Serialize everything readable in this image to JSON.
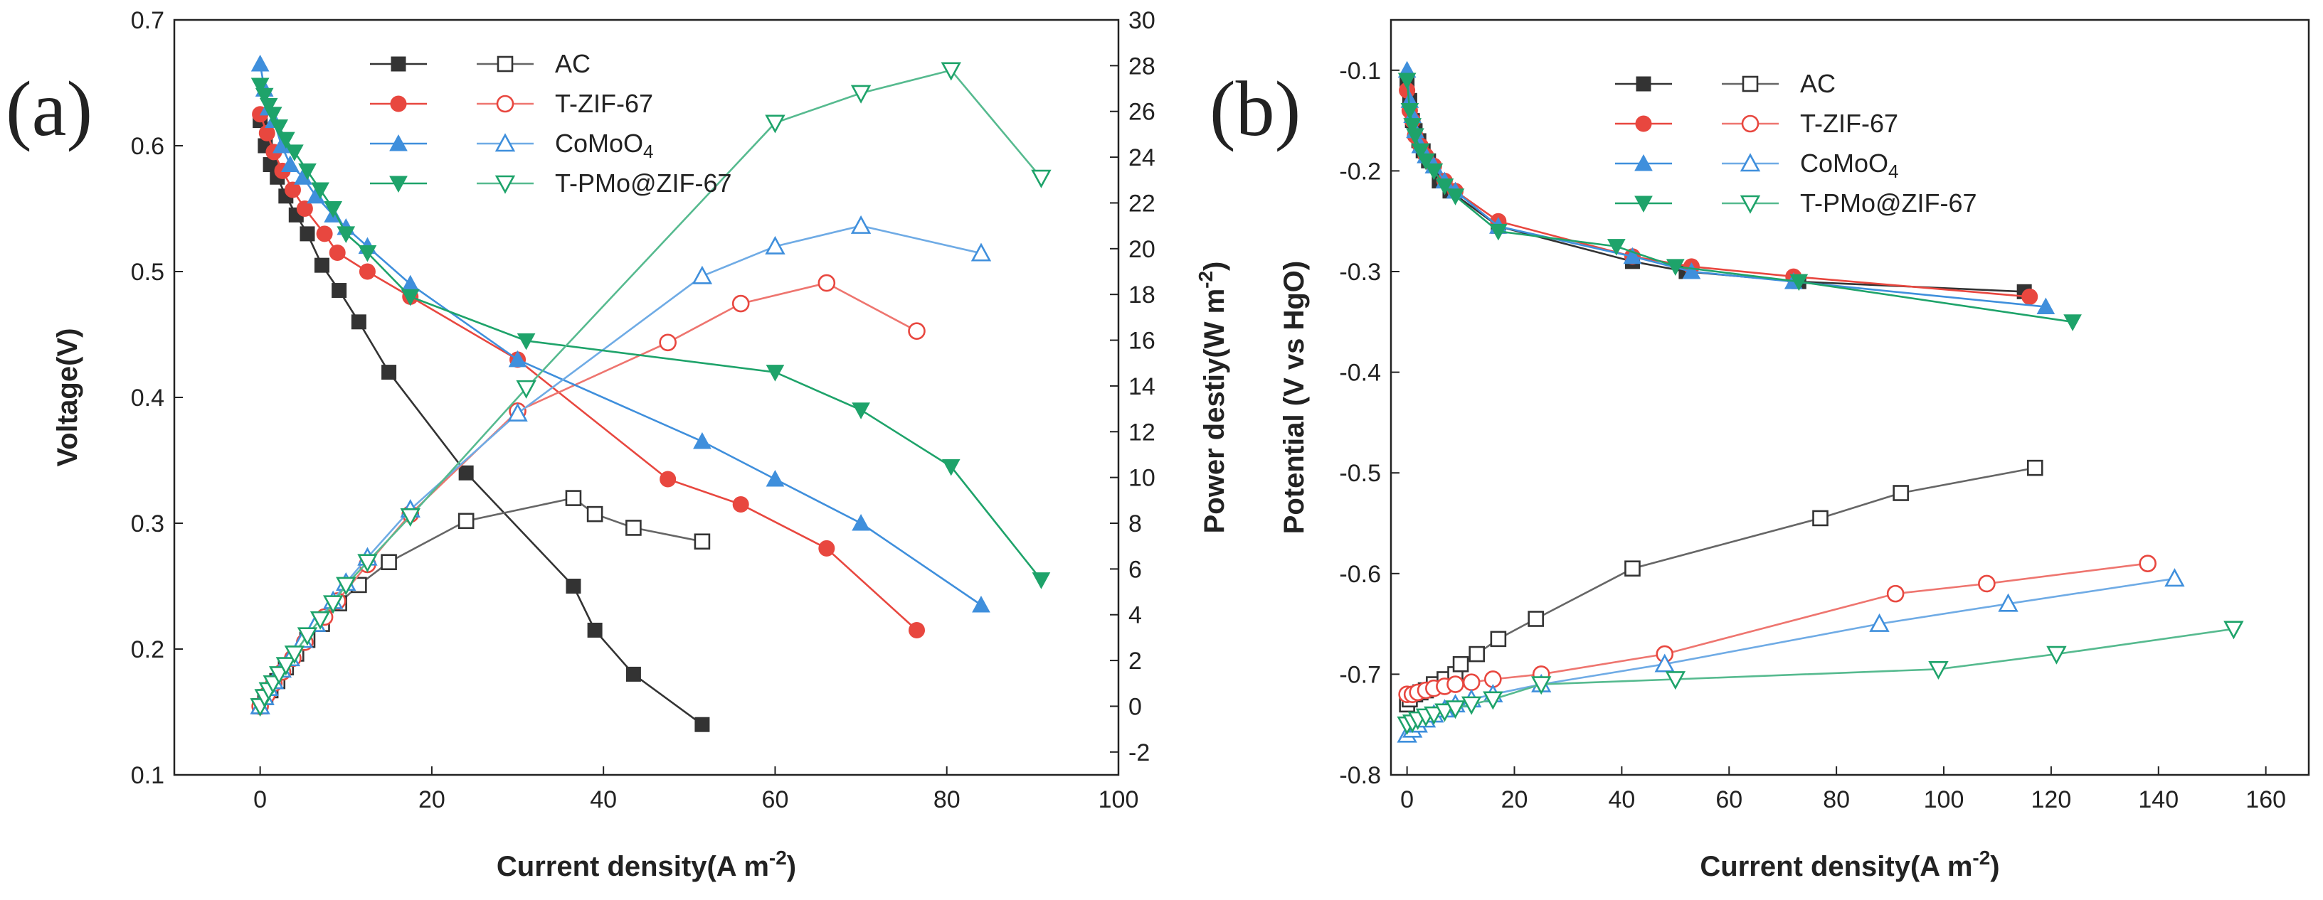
{
  "figure": {
    "panels": [
      "(a)",
      "(b)"
    ]
  },
  "chart_data": [
    {
      "panel": "(a)",
      "type": "line",
      "title": "",
      "xlabel": "Current density(A m⁻²)",
      "ylabel": "Voltage(V)",
      "y2label": "Power destiy(W m⁻²)",
      "xlim": [
        -10,
        100
      ],
      "ylim": [
        0.1,
        0.7
      ],
      "y2lim": [
        -3,
        30
      ],
      "xticks": [
        0,
        20,
        40,
        60,
        80,
        100
      ],
      "yticks": [
        0.1,
        0.2,
        0.3,
        0.4,
        0.5,
        0.6,
        0.7
      ],
      "y2ticks": [
        -2,
        0,
        2,
        4,
        6,
        8,
        10,
        12,
        14,
        16,
        18,
        20,
        22,
        24,
        26,
        28,
        30
      ],
      "xtick_labels": [
        "0",
        "20",
        "40",
        "60",
        "80",
        "100"
      ],
      "ytick_labels": [
        "0.1",
        "0.2",
        "0.3",
        "0.4",
        "0.5",
        "0.6",
        "0.7"
      ],
      "y2tick_labels": [
        "-2",
        "0",
        "2",
        "4",
        "6",
        "8",
        "10",
        "12",
        "14",
        "16",
        "18",
        "20",
        "22",
        "24",
        "26",
        "28",
        "30"
      ],
      "legend_placement": "top-center",
      "series": [
        {
          "name": "AC",
          "label": "AC",
          "marker": "square",
          "color": "#333333",
          "voltage": {
            "x": [
              0,
              0.6,
              1.2,
              2,
              3,
              4.2,
              5.5,
              7.2,
              9.2,
              11.5,
              15,
              24,
              36.5,
              39,
              43.5,
              51.5
            ],
            "y": [
              0.62,
              0.6,
              0.585,
              0.575,
              0.56,
              0.545,
              0.53,
              0.505,
              0.485,
              0.46,
              0.42,
              0.34,
              0.25,
              0.215,
              0.18,
              0.14
            ]
          },
          "power": {
            "x": [
              0,
              0.6,
              1.2,
              2,
              3,
              4.2,
              5.5,
              7.2,
              9.2,
              11.5,
              15,
              24,
              36.5,
              39,
              43.5,
              51.5
            ],
            "y": [
              0,
              0.4,
              0.7,
              1.1,
              1.7,
              2.3,
              2.9,
              3.6,
              4.5,
              5.3,
              6.3,
              8.1,
              9.1,
              8.4,
              7.8,
              7.2
            ]
          }
        },
        {
          "name": "T-ZIF-67",
          "label": "T-ZIF-67",
          "marker": "circle",
          "color": "#e8473f",
          "voltage": {
            "x": [
              0,
              0.8,
              1.6,
              2.6,
              3.8,
              5.2,
              7.5,
              9,
              12.5,
              17.5,
              30,
              47.5,
              56,
              66,
              76.5
            ],
            "y": [
              0.625,
              0.61,
              0.595,
              0.58,
              0.565,
              0.55,
              0.53,
              0.515,
              0.5,
              0.48,
              0.43,
              0.335,
              0.315,
              0.28,
              0.215
            ]
          },
          "power": {
            "x": [
              0,
              0.8,
              1.6,
              2.6,
              3.8,
              5.2,
              7.5,
              9,
              12.5,
              17.5,
              30,
              47.5,
              56,
              66,
              76.5
            ],
            "y": [
              0,
              0.5,
              1,
              1.5,
              2.1,
              2.8,
              3.9,
              4.6,
              6.2,
              8.4,
              12.9,
              15.9,
              17.6,
              18.5,
              16.4
            ]
          }
        },
        {
          "name": "CoMoO₄",
          "label": "CoMoO",
          "label_sub": "4",
          "marker": "triangle-up",
          "color": "#3f8fdc",
          "voltage": {
            "x": [
              0,
              0.5,
              1,
              1.6,
              2.5,
              3.5,
              5,
              6.5,
              8.5,
              10,
              12.5,
              17.5,
              30,
              51.5,
              60,
              70,
              84
            ],
            "y": [
              0.665,
              0.645,
              0.63,
              0.62,
              0.6,
              0.585,
              0.575,
              0.56,
              0.545,
              0.535,
              0.52,
              0.49,
              0.43,
              0.365,
              0.335,
              0.3,
              0.235
            ]
          },
          "power": {
            "x": [
              0,
              0.5,
              1,
              1.6,
              2.5,
              3.5,
              5,
              6.5,
              8.5,
              10,
              12.5,
              17.5,
              30,
              51.5,
              60,
              70,
              84
            ],
            "y": [
              0,
              0.4,
              0.8,
              1.1,
              1.6,
              2.1,
              2.9,
              3.6,
              4.6,
              5.4,
              6.5,
              8.6,
              12.8,
              18.8,
              20.1,
              21,
              19.8
            ]
          }
        },
        {
          "name": "T-PMo@ZIF-67",
          "label": "T-PMo@ZIF-67",
          "marker": "triangle-down",
          "color": "#1ea36a",
          "voltage": {
            "x": [
              0,
              0.5,
              1,
              1.5,
              2.2,
              3,
              4,
              5.5,
              7,
              8.5,
              10,
              12.5,
              17.5,
              31,
              60,
              70,
              80.5,
              91
            ],
            "y": [
              0.648,
              0.64,
              0.632,
              0.625,
              0.615,
              0.605,
              0.595,
              0.58,
              0.565,
              0.55,
              0.53,
              0.515,
              0.48,
              0.445,
              0.42,
              0.39,
              0.345,
              0.255
            ]
          },
          "power": {
            "x": [
              0,
              0.5,
              1,
              1.5,
              2.2,
              3,
              4,
              5.5,
              7,
              8.5,
              10,
              12.5,
              17.5,
              31,
              60,
              70,
              80.5,
              91
            ],
            "y": [
              0,
              0.4,
              0.7,
              1,
              1.4,
              1.8,
              2.3,
              3.1,
              3.8,
              4.5,
              5.3,
              6.3,
              8.3,
              13.9,
              25.5,
              26.8,
              27.8,
              23.1
            ]
          }
        }
      ]
    },
    {
      "panel": "(b)",
      "type": "line",
      "title": "",
      "xlabel": "Current density(A m⁻²)",
      "ylabel": "Potential (V vs HgO)",
      "xlim": [
        -3,
        168
      ],
      "ylim": [
        -0.8,
        -0.05
      ],
      "xticks": [
        0,
        20,
        40,
        60,
        80,
        100,
        120,
        140,
        160
      ],
      "yticks": [
        -0.8,
        -0.7,
        -0.6,
        -0.5,
        -0.4,
        -0.3,
        -0.2,
        -0.1
      ],
      "xtick_labels": [
        "0",
        "20",
        "40",
        "60",
        "80",
        "100",
        "120",
        "140",
        "160"
      ],
      "ytick_labels": [
        "-0.8",
        "-0.7",
        "-0.6",
        "-0.5",
        "-0.4",
        "-0.3",
        "-0.2",
        "-0.1"
      ],
      "legend_placement": "top-center",
      "series": [
        {
          "name": "AC",
          "label": "AC",
          "marker": "square",
          "color": "#333333",
          "anode": {
            "x": [
              0,
              0.5,
              1,
              1.5,
              2.2,
              3,
              4,
              6,
              8,
              17,
              42,
              52,
              73,
              115
            ],
            "y": [
              -0.11,
              -0.13,
              -0.15,
              -0.16,
              -0.17,
              -0.18,
              -0.19,
              -0.21,
              -0.22,
              -0.255,
              -0.29,
              -0.3,
              -0.31,
              -0.32
            ]
          },
          "cathode": {
            "x": [
              0,
              0.5,
              1,
              1.5,
              2.5,
              3.5,
              5,
              7,
              9,
              10,
              13,
              17,
              24,
              42,
              77,
              92,
              117
            ],
            "y": [
              -0.73,
              -0.725,
              -0.72,
              -0.72,
              -0.718,
              -0.716,
              -0.71,
              -0.705,
              -0.7,
              -0.69,
              -0.68,
              -0.665,
              -0.645,
              -0.595,
              -0.545,
              -0.52,
              -0.495
            ]
          }
        },
        {
          "name": "T-ZIF-67",
          "label": "T-ZIF-67",
          "marker": "circle",
          "color": "#e8473f",
          "anode": {
            "x": [
              0,
              0.5,
              1,
              1.5,
              2.5,
              3.5,
              5,
              7,
              9,
              17,
              42,
              53,
              72,
              116
            ],
            "y": [
              -0.12,
              -0.14,
              -0.15,
              -0.165,
              -0.175,
              -0.185,
              -0.195,
              -0.21,
              -0.22,
              -0.25,
              -0.285,
              -0.295,
              -0.305,
              -0.325
            ]
          },
          "cathode": {
            "x": [
              0,
              1,
              2,
              3.5,
              5,
              7,
              9,
              12,
              16,
              25,
              48,
              91,
              108,
              138
            ],
            "y": [
              -0.72,
              -0.72,
              -0.718,
              -0.716,
              -0.714,
              -0.712,
              -0.71,
              -0.708,
              -0.705,
              -0.7,
              -0.68,
              -0.62,
              -0.61,
              -0.59
            ]
          }
        },
        {
          "name": "CoMoO₄",
          "label": "CoMoO",
          "label_sub": "4",
          "marker": "triangle-up",
          "color": "#3f8fdc",
          "anode": {
            "x": [
              0,
              0.5,
              1,
              1.5,
              2.5,
              3.5,
              5,
              7,
              9,
              17,
              42,
              53,
              72,
              119
            ],
            "y": [
              -0.1,
              -0.13,
              -0.145,
              -0.16,
              -0.175,
              -0.185,
              -0.195,
              -0.21,
              -0.22,
              -0.255,
              -0.285,
              -0.3,
              -0.31,
              -0.335
            ]
          },
          "cathode": {
            "x": [
              0,
              1,
              2,
              3.5,
              5,
              7,
              9,
              12,
              16,
              25,
              48,
              88,
              112,
              143
            ],
            "y": [
              -0.76,
              -0.755,
              -0.75,
              -0.745,
              -0.74,
              -0.735,
              -0.73,
              -0.725,
              -0.72,
              -0.71,
              -0.69,
              -0.65,
              -0.63,
              -0.605
            ]
          }
        },
        {
          "name": "T-PMo@ZIF-67",
          "label": "T-PMo@ZIF-67",
          "marker": "triangle-down",
          "color": "#1ea36a",
          "anode": {
            "x": [
              0,
              0.5,
              1,
              1.5,
              2.5,
              3.5,
              5,
              7,
              9,
              17,
              39,
              50,
              73,
              124
            ],
            "y": [
              -0.11,
              -0.14,
              -0.155,
              -0.165,
              -0.18,
              -0.19,
              -0.2,
              -0.215,
              -0.225,
              -0.26,
              -0.275,
              -0.295,
              -0.31,
              -0.35
            ]
          },
          "cathode": {
            "x": [
              0,
              1,
              2,
              3.5,
              5,
              7,
              9,
              12,
              16,
              25,
              50,
              99,
              121,
              154
            ],
            "y": [
              -0.75,
              -0.748,
              -0.745,
              -0.742,
              -0.74,
              -0.737,
              -0.734,
              -0.73,
              -0.725,
              -0.71,
              -0.705,
              -0.695,
              -0.68,
              -0.655
            ]
          }
        }
      ]
    }
  ]
}
